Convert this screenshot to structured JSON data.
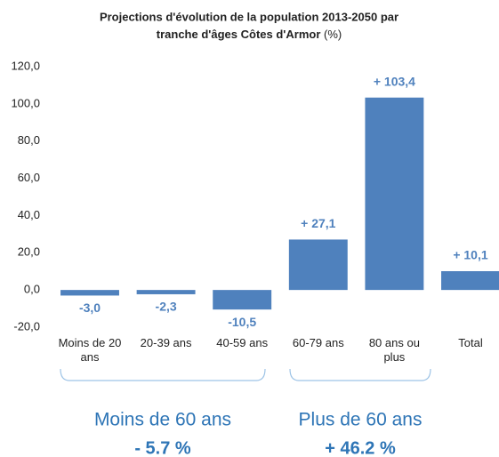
{
  "chart_data": {
    "type": "bar",
    "title": [
      "Projections d'évolution de la population 2013-2050 par",
      "tranche d'âges Côtes d'Armor"
    ],
    "unit": "(%)",
    "categories": [
      "Moins de 20 ans",
      "20-39 ans",
      "40-59 ans",
      "60-79 ans",
      "80 ans ou plus",
      "Total"
    ],
    "values": [
      -3.0,
      -2.3,
      -10.5,
      27.1,
      103.4,
      10.1
    ],
    "value_labels": [
      "-3,0",
      "-2,3",
      "-10,5",
      "+ 27,1",
      "+ 103,4",
      "+ 10,1"
    ],
    "color": "#4f81bd",
    "ylim": [
      -20,
      120
    ],
    "yticks": [
      {
        "value": -20,
        "label": "-20,0"
      },
      {
        "value": 0,
        "label": "0,0"
      },
      {
        "value": 20,
        "label": "20,0"
      },
      {
        "value": 40,
        "label": "40,0"
      },
      {
        "value": 60,
        "label": "60,0"
      },
      {
        "value": 80,
        "label": "80,0"
      },
      {
        "value": 100,
        "label": "100,0"
      },
      {
        "value": 120,
        "label": "120,0"
      }
    ],
    "grid": false,
    "groups": [
      {
        "label": "Moins de 60 ans",
        "value_label": "- 5.7 %"
      },
      {
        "label": "Plus de 60 ans",
        "value_label": "+ 46.2 %"
      }
    ]
  }
}
